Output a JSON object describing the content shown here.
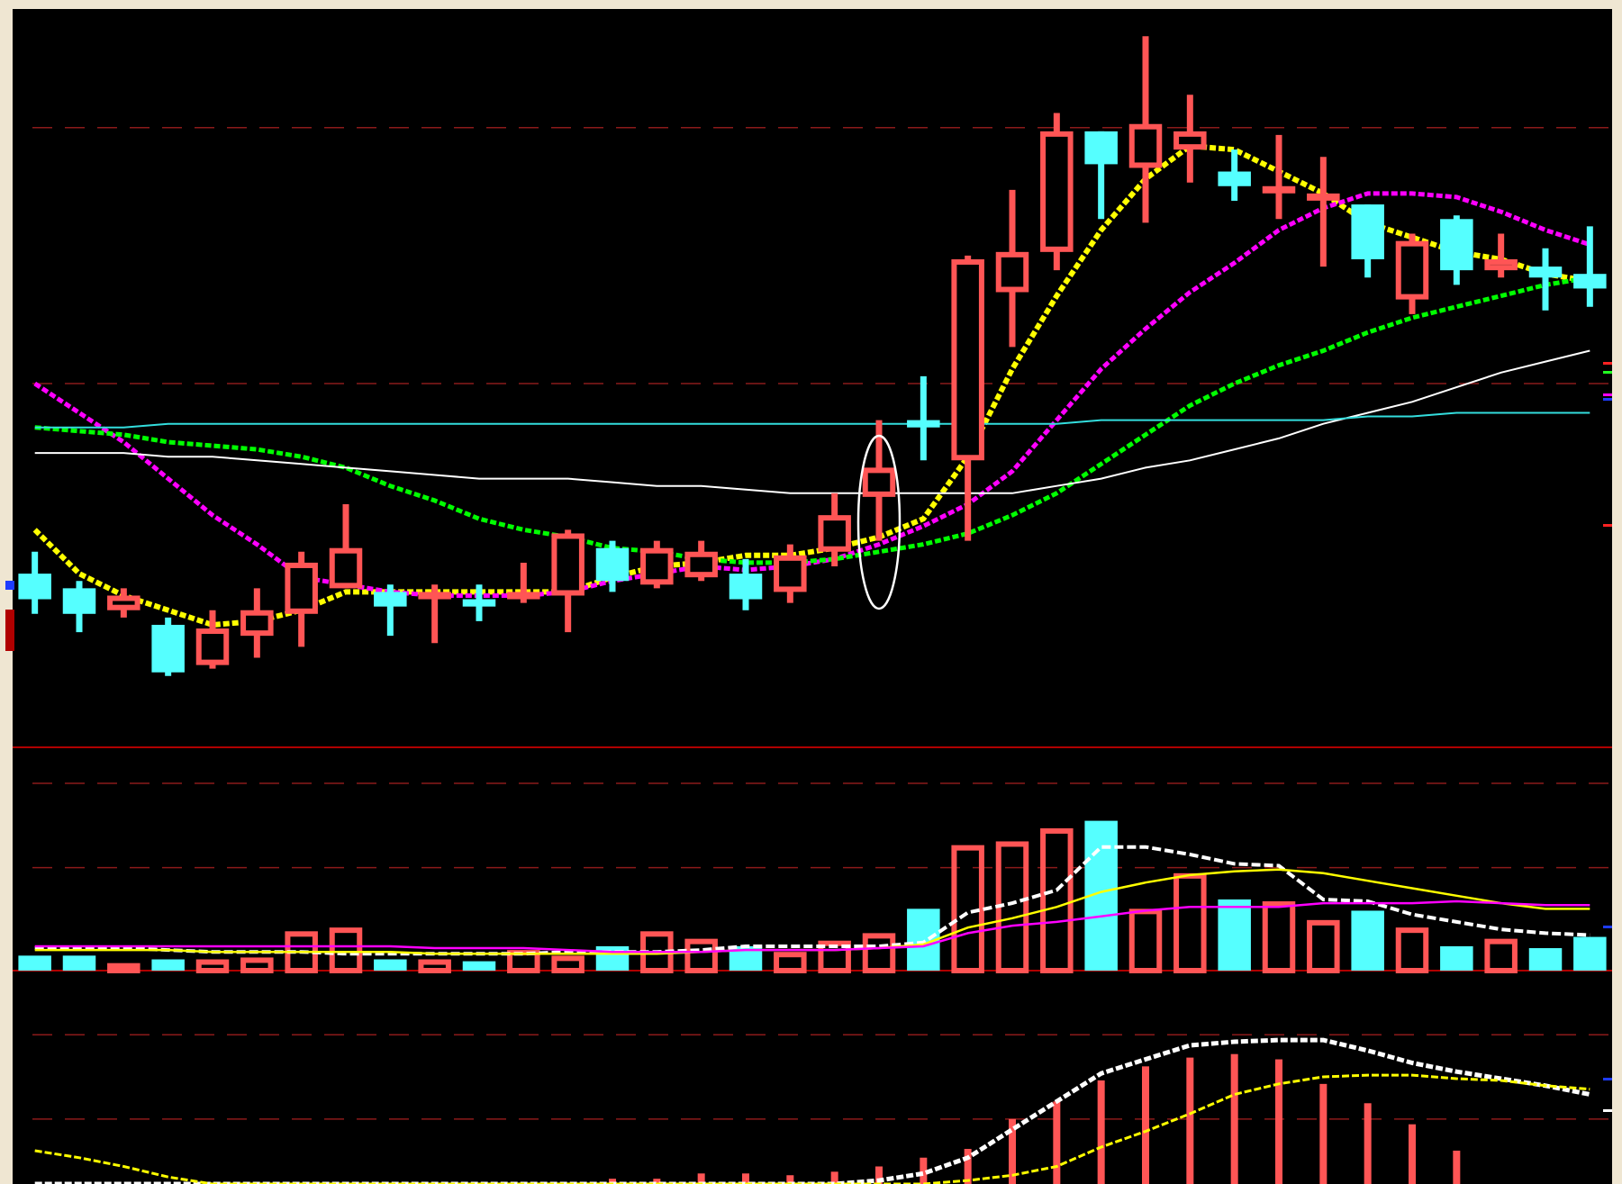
{
  "colors": {
    "background": "#000000",
    "frame": "#efe6d2",
    "up": "#ff5555",
    "down": "#55ffff",
    "grid": "#8b1a1a",
    "divider": "#b00000",
    "ma5": "#ffff00",
    "ma10": "#ff00ff",
    "ma20": "#00ff00",
    "ma60": "#ffffff",
    "ma120": "#33dddd",
    "highlight": "#ffffff"
  },
  "chart_data": [
    {
      "type": "candlestick",
      "pane": "price",
      "title": "",
      "xlabel": "",
      "ylabel": "",
      "ylim": [
        0,
        100
      ],
      "grid": true,
      "gridlines": [
        50,
        85
      ],
      "candles": [
        {
          "o": 24,
          "c": 20.5,
          "h": 27,
          "l": 18.5
        },
        {
          "o": 22,
          "c": 18.5,
          "h": 23,
          "l": 16
        },
        {
          "o": 19,
          "c": 21,
          "h": 22,
          "l": 18
        },
        {
          "o": 17,
          "c": 10.5,
          "h": 18,
          "l": 10
        },
        {
          "o": 11.5,
          "c": 16.5,
          "h": 19,
          "l": 11
        },
        {
          "o": 15.5,
          "c": 19,
          "h": 22,
          "l": 12.5
        },
        {
          "o": 18.5,
          "c": 25.5,
          "h": 27,
          "l": 14
        },
        {
          "o": 22,
          "c": 27.5,
          "h": 33.5,
          "l": 22
        },
        {
          "o": 21.5,
          "c": 19.5,
          "h": 22.5,
          "l": 15.5
        },
        {
          "o": 20.5,
          "c": 21.5,
          "h": 22.5,
          "l": 14.5
        },
        {
          "o": 20.5,
          "c": 19.5,
          "h": 22.5,
          "l": 17.5
        },
        {
          "o": 20.5,
          "c": 21.5,
          "h": 25.5,
          "l": 20
        },
        {
          "o": 21,
          "c": 29.5,
          "h": 30,
          "l": 16
        },
        {
          "o": 27.5,
          "c": 23,
          "h": 28.5,
          "l": 21.5
        },
        {
          "o": 22.5,
          "c": 27.5,
          "h": 28.5,
          "l": 22
        },
        {
          "o": 23.5,
          "c": 27,
          "h": 28.5,
          "l": 23
        },
        {
          "o": 24,
          "c": 20.5,
          "h": 26,
          "l": 19
        },
        {
          "o": 21.5,
          "c": 26.5,
          "h": 28,
          "l": 20
        },
        {
          "o": 27,
          "c": 32,
          "h": 35,
          "l": 25
        },
        {
          "o": 34.5,
          "c": 38.5,
          "h": 45,
          "l": 28.5
        },
        {
          "o": 45,
          "c": 44,
          "h": 51,
          "l": 39.5
        },
        {
          "o": 39.5,
          "c": 67,
          "h": 67.5,
          "l": 28.5
        },
        {
          "o": 62.5,
          "c": 68,
          "h": 76.5,
          "l": 55
        },
        {
          "o": 68,
          "c": 84.5,
          "h": 87,
          "l": 65.5
        },
        {
          "o": 84.5,
          "c": 80,
          "h": 84.5,
          "l": 72.5
        },
        {
          "o": 79.5,
          "c": 85.5,
          "h": 97.5,
          "l": 72
        },
        {
          "o": 82,
          "c": 84.5,
          "h": 89.5,
          "l": 77.5
        },
        {
          "o": 79,
          "c": 77,
          "h": 82,
          "l": 75
        },
        {
          "o": 76.5,
          "c": 77,
          "h": 84,
          "l": 72.5
        },
        {
          "o": 76,
          "c": 76,
          "h": 81,
          "l": 66
        },
        {
          "o": 74.5,
          "c": 67,
          "h": 74.5,
          "l": 64.5
        },
        {
          "o": 61.5,
          "c": 69.5,
          "h": 70.5,
          "l": 59.5
        },
        {
          "o": 72.5,
          "c": 65.5,
          "h": 73,
          "l": 63.5
        },
        {
          "o": 65.5,
          "c": 67,
          "h": 70.5,
          "l": 64.5
        },
        {
          "o": 66,
          "c": 64.5,
          "h": 68.5,
          "l": 60
        },
        {
          "o": 65,
          "c": 63,
          "h": 71.5,
          "l": 60.5
        }
      ],
      "moving_averages": [
        {
          "color": "ma5",
          "values": [
            30,
            24,
            21,
            19,
            17,
            17.5,
            19,
            21.5,
            21.5,
            21.5,
            21.5,
            21.5,
            21.5,
            23.5,
            25,
            25.5,
            26.5,
            26.5,
            27.5,
            29,
            31.5,
            40,
            52,
            62,
            71,
            78,
            82.5,
            82,
            79,
            76,
            72,
            70,
            68,
            67,
            65,
            64
          ]
        },
        {
          "color": "ma10",
          "values": [
            50,
            46,
            42,
            37,
            32,
            28,
            23.5,
            22.5,
            21.5,
            21,
            21,
            21,
            21.5,
            23,
            24,
            25,
            24.5,
            25,
            26,
            28,
            30.5,
            33.5,
            38,
            45,
            52,
            57.5,
            62.5,
            66.5,
            71,
            74,
            76,
            76,
            75.5,
            73.5,
            71,
            69
          ]
        },
        {
          "color": "ma20",
          "values": [
            44,
            43.5,
            43,
            42,
            41.5,
            41,
            40,
            38.5,
            36,
            34,
            31.5,
            30,
            29,
            27.5,
            27,
            26,
            25.5,
            25.5,
            26,
            27,
            28,
            29.5,
            32,
            35,
            39,
            43,
            47,
            50,
            52.5,
            54.5,
            57,
            59,
            60.5,
            62,
            63.5,
            64.5
          ]
        },
        {
          "color": "ma60",
          "values": [
            40.5,
            40.5,
            40.5,
            40,
            40,
            39.5,
            39,
            38.5,
            38,
            37.5,
            37,
            37,
            37,
            36.5,
            36,
            36,
            35.5,
            35,
            35,
            35,
            35,
            35,
            35,
            36,
            37,
            38.5,
            39.5,
            41,
            42.5,
            44.5,
            46,
            47.5,
            49.5,
            51.5,
            53,
            54.5
          ]
        },
        {
          "color": "ma120",
          "values": [
            44,
            44,
            44,
            44.5,
            44.5,
            44.5,
            44.5,
            44.5,
            44.5,
            44.5,
            44.5,
            44.5,
            44.5,
            44.5,
            44.5,
            44.5,
            44.5,
            44.5,
            44.5,
            44.5,
            44.5,
            44.5,
            44.5,
            44.5,
            45,
            45,
            45,
            45,
            45,
            45,
            45.5,
            45.5,
            46,
            46,
            46,
            46
          ]
        }
      ],
      "highlight_candle_index": 19
    },
    {
      "type": "bar",
      "pane": "volume",
      "title": "",
      "xlabel": "",
      "ylabel": "",
      "ylim": [
        0,
        100
      ],
      "grid": true,
      "gridlines": [
        55,
        100
      ],
      "values": [
        8,
        8,
        4,
        6,
        6,
        7,
        21,
        23,
        6,
        6,
        5,
        11,
        8,
        13,
        21,
        17,
        13,
        10,
        16,
        20,
        33,
        67,
        69,
        76,
        80,
        33,
        52,
        38,
        37,
        27,
        32,
        23,
        13,
        17,
        12,
        18
      ],
      "lines": [
        {
          "color": "ma60",
          "values": [
            12,
            12,
            12,
            11,
            10,
            10,
            10,
            9,
            9,
            9,
            9,
            9,
            10,
            10,
            10,
            11,
            13,
            13,
            13,
            13,
            15,
            31,
            36,
            43,
            66,
            66,
            62,
            57,
            56,
            38,
            37,
            30,
            26,
            22,
            20,
            19
          ]
        },
        {
          "color": "ma5",
          "values": [
            11,
            11,
            11,
            11,
            10,
            10,
            10,
            10,
            10,
            9,
            9,
            9,
            9,
            9,
            9,
            10,
            11,
            11,
            11,
            12,
            14,
            23,
            28,
            34,
            42,
            47,
            51,
            53,
            54,
            52,
            48,
            44,
            40,
            36,
            33,
            33
          ]
        },
        {
          "color": "ma10",
          "values": [
            13,
            13,
            13,
            13,
            13,
            13,
            13,
            13,
            13,
            12,
            12,
            12,
            11,
            10,
            10,
            10,
            11,
            11,
            11,
            12,
            13,
            20,
            24,
            26,
            29,
            32,
            34,
            34,
            34,
            36,
            36,
            36,
            37,
            36,
            35,
            35
          ]
        }
      ]
    },
    {
      "type": "bar",
      "pane": "indicator",
      "title": "",
      "xlabel": "",
      "ylabel": "",
      "ylim": [
        0,
        100
      ],
      "grid": true,
      "gridlines": [
        37,
        85
      ],
      "values": [
        0,
        0,
        0,
        0,
        0,
        0,
        0,
        0,
        0,
        0,
        0,
        0,
        0,
        3,
        3,
        6,
        6,
        5,
        7,
        10,
        15,
        20,
        37,
        47,
        59,
        67,
        72,
        74,
        71,
        57,
        46,
        34,
        19,
        0,
        0,
        0
      ],
      "lines": [
        {
          "color": "ma60",
          "values": [
            0,
            0,
            0,
            0,
            0,
            0,
            0,
            0,
            0,
            0,
            0,
            0,
            0,
            0,
            0,
            0,
            0,
            0,
            0,
            2,
            6,
            15,
            31,
            47,
            63,
            71,
            79,
            81,
            82,
            82,
            76,
            69,
            64,
            60,
            56,
            51
          ]
        },
        {
          "color": "ma5",
          "values": [
            19,
            15,
            10,
            4,
            0,
            0,
            0,
            0,
            0,
            0,
            0,
            0,
            0,
            0,
            0,
            0,
            0,
            0,
            0,
            0,
            0,
            2,
            5,
            10,
            21,
            30,
            40,
            51,
            57,
            61,
            62,
            62,
            60,
            59,
            56,
            54
          ]
        }
      ]
    }
  ]
}
